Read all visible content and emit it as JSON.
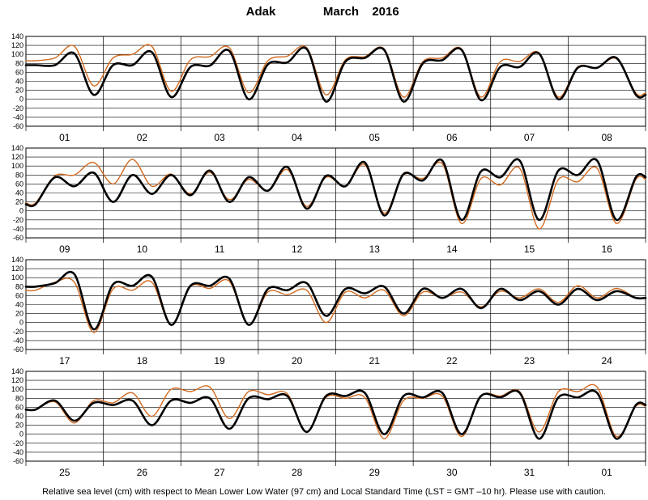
{
  "title": {
    "station": "Adak",
    "month": "March",
    "year": "2016"
  },
  "footnote": "Relative sea level (cm) with respect to Mean Lower Low Water (97 cm) and Local Standard Time (LST = GMT –10 hr). Please use with caution.",
  "colors": {
    "predicted": "#000000",
    "observed": "#d2691e",
    "grid": "#000000",
    "background": "#ffffff"
  },
  "chart_data": {
    "type": "line",
    "ylim": [
      -60,
      140
    ],
    "yticks": [
      -60,
      -40,
      -20,
      0,
      20,
      40,
      60,
      80,
      100,
      120,
      140
    ],
    "y_unit": "cm",
    "grid": true,
    "x_unit": "hour",
    "panels": [
      {
        "days": [
          "01",
          "02",
          "03",
          "04",
          "05",
          "06",
          "07",
          "08"
        ],
        "series": [
          {
            "values": [
              76,
              76,
              102,
              10,
              76,
              76,
              105,
              5,
              72,
              75,
              108,
              0,
              78,
              82,
              112,
              -5,
              84,
              92,
              110,
              -5,
              80,
              87,
              110,
              -2,
              72,
              72,
              102,
              0,
              70,
              70,
              92,
              10
            ]
          },
          {
            "values": [
              86,
              92,
              118,
              30,
              92,
              100,
              118,
              18,
              88,
              95,
              115,
              15,
              86,
              96,
              115,
              10,
              88,
              95,
              112,
              5,
              84,
              92,
              112,
              5,
              84,
              84,
              103,
              5,
              72,
              70,
              90,
              14
            ]
          }
        ]
      },
      {
        "days": [
          "09",
          "10",
          "11",
          "12",
          "13",
          "14",
          "15",
          "16"
        ],
        "series": [
          {
            "values": [
              15,
              75,
              55,
              85,
              20,
              80,
              38,
              80,
              35,
              90,
              20,
              75,
              45,
              98,
              5,
              78,
              55,
              108,
              -10,
              82,
              68,
              112,
              -20,
              88,
              75,
              112,
              -20,
              90,
              80,
              112,
              -20,
              75
            ]
          },
          {
            "values": [
              18,
              78,
              80,
              108,
              60,
              115,
              55,
              82,
              38,
              86,
              25,
              70,
              45,
              92,
              10,
              75,
              55,
              103,
              -5,
              80,
              72,
              105,
              -28,
              72,
              58,
              95,
              -40,
              70,
              65,
              95,
              -28,
              70
            ]
          }
        ]
      },
      {
        "days": [
          "17",
          "18",
          "19",
          "20",
          "21",
          "22",
          "23",
          "24"
        ],
        "series": [
          {
            "values": [
              80,
              88,
              108,
              -15,
              85,
              82,
              102,
              -5,
              82,
              82,
              98,
              -5,
              75,
              72,
              88,
              15,
              75,
              65,
              80,
              20,
              75,
              55,
              75,
              32,
              75,
              50,
              70,
              40,
              75,
              50,
              70,
              55
            ]
          },
          {
            "values": [
              72,
              90,
              90,
              -22,
              75,
              72,
              90,
              -5,
              80,
              76,
              92,
              -5,
              68,
              62,
              72,
              0,
              68,
              55,
              72,
              15,
              68,
              55,
              68,
              35,
              70,
              55,
              75,
              45,
              82,
              55,
              76,
              55
            ]
          }
        ]
      },
      {
        "days": [
          "25",
          "26",
          "27",
          "28",
          "29",
          "30",
          "31",
          "01"
        ],
        "series": [
          {
            "values": [
              55,
              75,
              30,
              70,
              65,
              75,
              20,
              75,
              70,
              80,
              12,
              80,
              78,
              85,
              5,
              85,
              85,
              92,
              0,
              85,
              82,
              92,
              0,
              85,
              82,
              92,
              -10,
              82,
              82,
              92,
              -10,
              65
            ]
          },
          {
            "values": [
              55,
              72,
              25,
              75,
              70,
              92,
              40,
              100,
              95,
              105,
              35,
              95,
              88,
              90,
              5,
              82,
              80,
              82,
              -10,
              75,
              80,
              85,
              -5,
              85,
              85,
              95,
              5,
              95,
              95,
              105,
              -5,
              62
            ]
          }
        ]
      }
    ]
  }
}
